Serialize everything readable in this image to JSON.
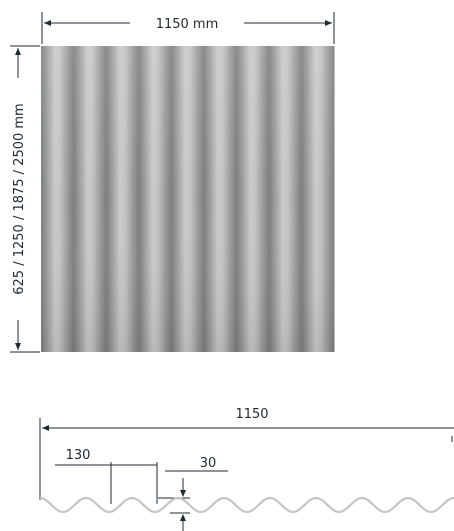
{
  "sheet_view": {
    "width_label": "1150 mm",
    "length_label": "625 / 1250 / 1875 / 2500 mm",
    "corrugation_count": 9,
    "sheet_color": "#a6a9a6"
  },
  "profile_view": {
    "overall_width_label": "1150",
    "pitch_label": "130",
    "depth_label": "30"
  }
}
